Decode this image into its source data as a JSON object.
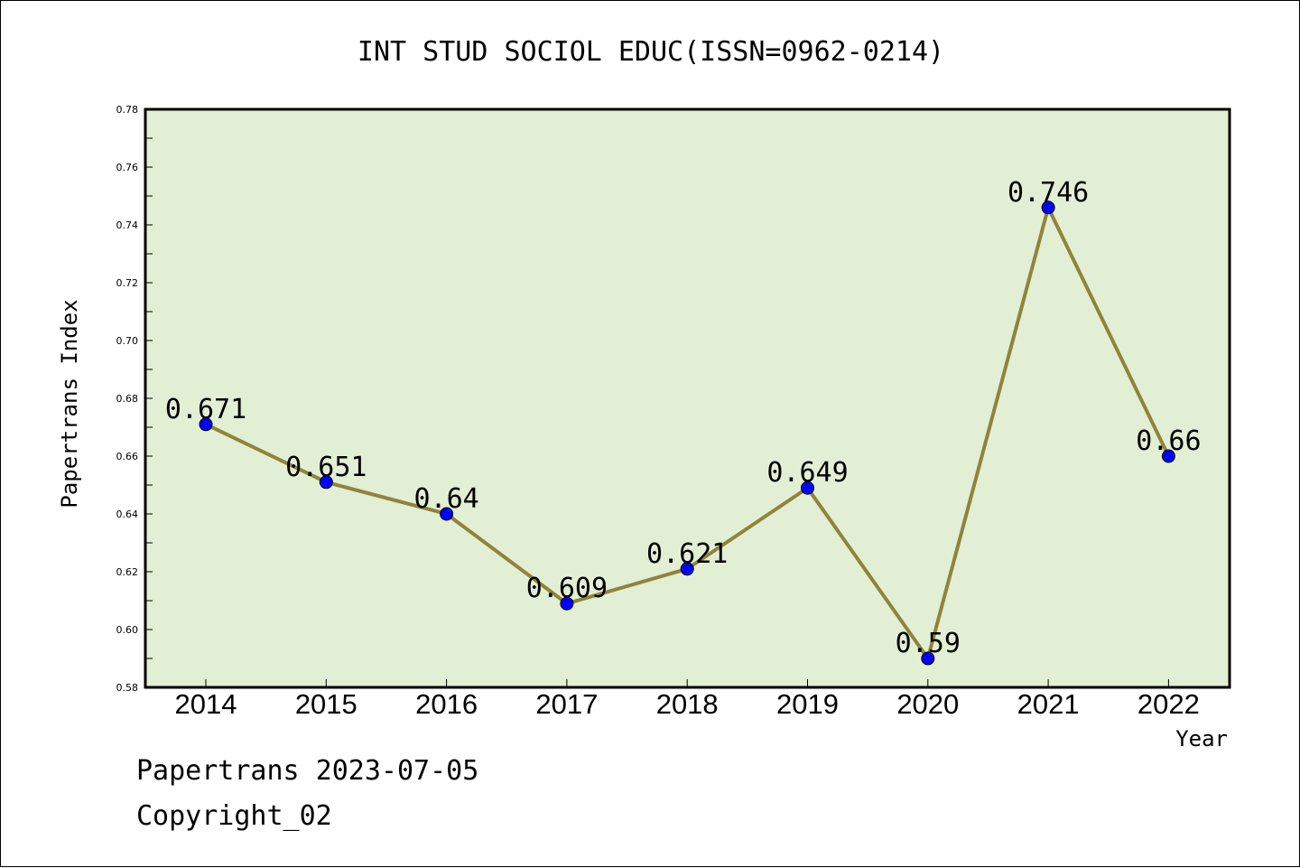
{
  "chart_data": {
    "type": "line",
    "title": "INT STUD SOCIOL EDUC(ISSN=0962-0214)",
    "xlabel": "Year",
    "ylabel": "Papertrans Index",
    "categories": [
      "2014",
      "2015",
      "2016",
      "2017",
      "2018",
      "2019",
      "2020",
      "2021",
      "2022"
    ],
    "values": [
      0.671,
      0.651,
      0.64,
      0.609,
      0.621,
      0.649,
      0.59,
      0.746,
      0.66
    ],
    "data_labels": [
      "0.671",
      "0.651",
      "0.64",
      "0.609",
      "0.621",
      "0.649",
      "0.59",
      "0.746",
      "0.66"
    ],
    "ylim": [
      0.58,
      0.78
    ],
    "yticks": [
      "0.58",
      "0.60",
      "0.62",
      "0.64",
      "0.66",
      "0.68",
      "0.70",
      "0.72",
      "0.74",
      "0.76",
      "0.78"
    ],
    "grid": false,
    "colors": {
      "plot_background": "#e2efd4",
      "line": "#8f843a",
      "marker": "#0000ff"
    }
  },
  "footer": {
    "line1": "Papertrans 2023-07-05",
    "line2": "Copyright_02"
  }
}
